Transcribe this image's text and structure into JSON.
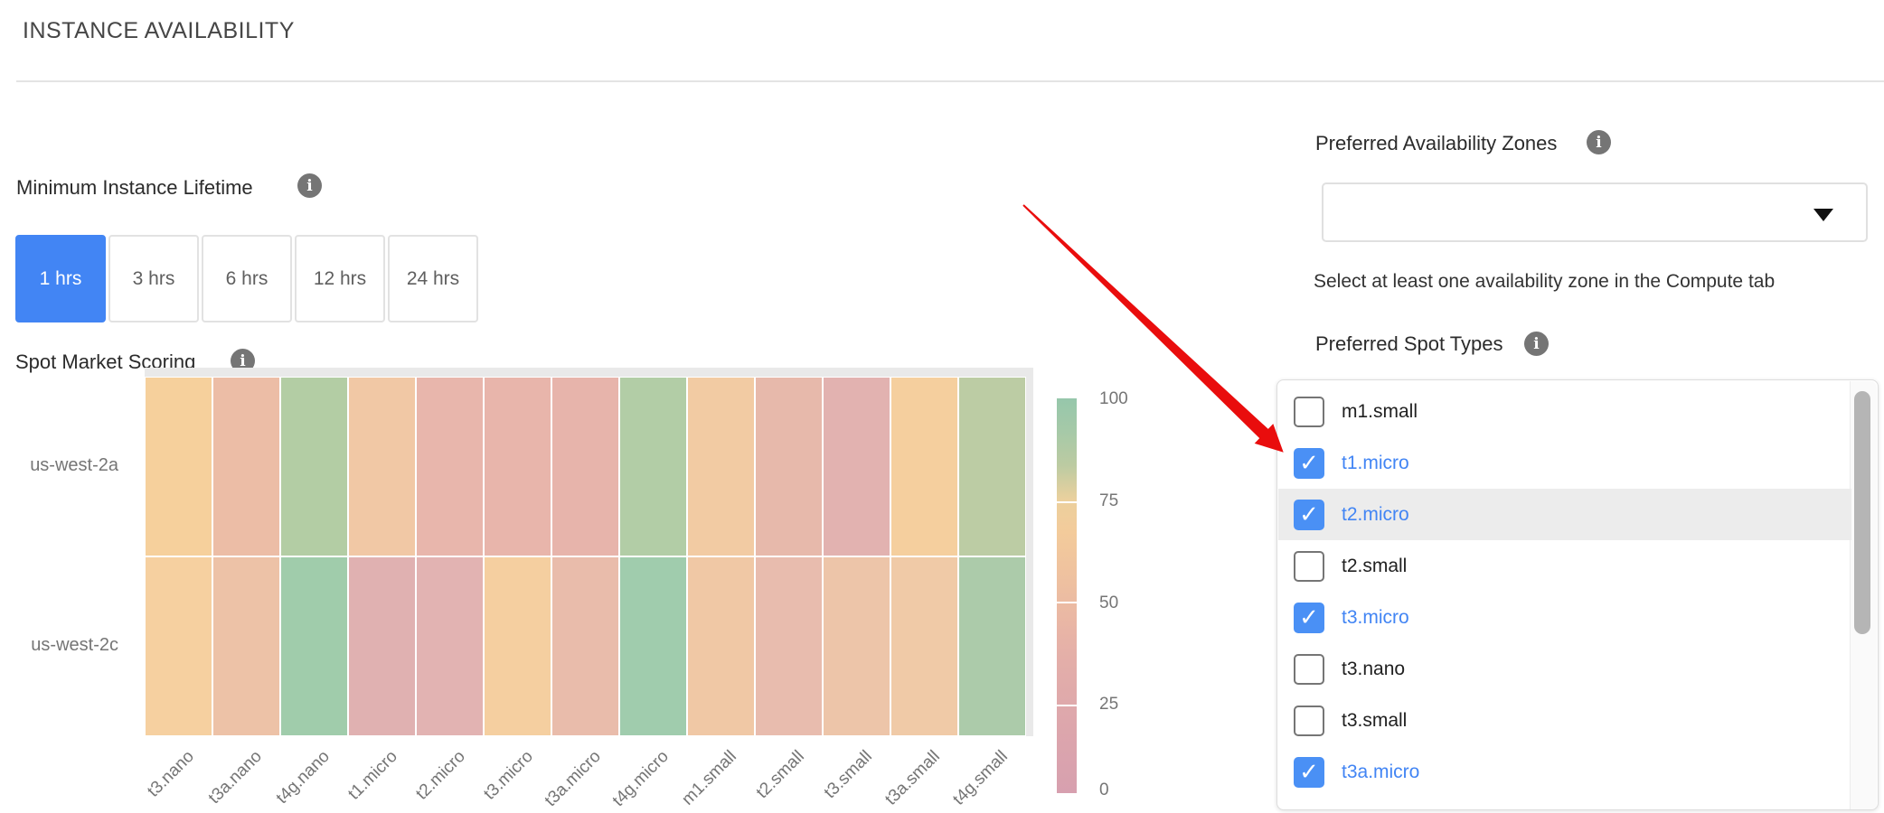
{
  "page": {
    "title": "INSTANCE AVAILABILITY"
  },
  "lifetime": {
    "label": "Minimum Instance Lifetime",
    "options": [
      "1 hrs",
      "3 hrs",
      "6 hrs",
      "12 hrs",
      "24 hrs"
    ],
    "selected": "1 hrs",
    "accent_color": "#4285f4"
  },
  "availability_zones": {
    "label": "Preferred Availability Zones",
    "dropdown_value": "",
    "helper": "Select at least one availability zone in the Compute tab"
  },
  "spot_types": {
    "label": "Preferred Spot Types",
    "checked_color": "#4285f4",
    "items": [
      {
        "label": "m1.small",
        "checked": false,
        "highlighted": false
      },
      {
        "label": "t1.micro",
        "checked": true,
        "highlighted": false
      },
      {
        "label": "t2.micro",
        "checked": true,
        "highlighted": true
      },
      {
        "label": "t2.small",
        "checked": false,
        "highlighted": false
      },
      {
        "label": "t3.micro",
        "checked": true,
        "highlighted": false
      },
      {
        "label": "t3.nano",
        "checked": false,
        "highlighted": false
      },
      {
        "label": "t3.small",
        "checked": false,
        "highlighted": false
      },
      {
        "label": "t3a.micro",
        "checked": true,
        "highlighted": false
      }
    ]
  },
  "chart_data": {
    "type": "heatmap",
    "title": "Spot Market Scoring",
    "rows": [
      "us-west-2a",
      "us-west-2c"
    ],
    "columns": [
      "t3.nano",
      "t3a.nano",
      "t4g.nano",
      "t1.micro",
      "t2.micro",
      "t3.micro",
      "t3a.micro",
      "t4g.micro",
      "m1.small",
      "t2.small",
      "t3.small",
      "t3a.small",
      "t4g.small"
    ],
    "values": [
      [
        60,
        45,
        85,
        55,
        35,
        35,
        35,
        85,
        58,
        38,
        28,
        62,
        82
      ],
      [
        60,
        48,
        90,
        25,
        27,
        60,
        42,
        90,
        55,
        40,
        48,
        55,
        88
      ]
    ],
    "cell_colors": [
      [
        "#f6d09c",
        "#ecbda6",
        "#b3cda4",
        "#f1c8a5",
        "#e8b6ac",
        "#e8b5ab",
        "#e7b4ab",
        "#b2cda6",
        "#f2cba3",
        "#e7b9ab",
        "#e2b2b0",
        "#f5cf9e",
        "#bccca4"
      ],
      [
        "#f6d0a0",
        "#edc2a7",
        "#a0ccab",
        "#e0b1b1",
        "#e2b3b2",
        "#f5cfa0",
        "#e9bcab",
        "#a0ccad",
        "#f0c8a5",
        "#e8bcae",
        "#edc5a9",
        "#f0caa7",
        "#accbaa"
      ]
    ],
    "colorbar": {
      "ticks": [
        100,
        75,
        50,
        25,
        0
      ],
      "range": [
        0,
        100
      ],
      "gradient_top_to_bottom": [
        "#96c7ab",
        "#bccba2",
        "#ecd09d",
        "#f3cb9b",
        "#ecbca2",
        "#e3aea9",
        "#d7a0af"
      ],
      "position": "right"
    },
    "xlabel": "",
    "ylabel": "",
    "grid": false,
    "legend_position": "right"
  },
  "annotation": {
    "arrow_color": "#e90d0d",
    "shape": "red-arrow"
  }
}
